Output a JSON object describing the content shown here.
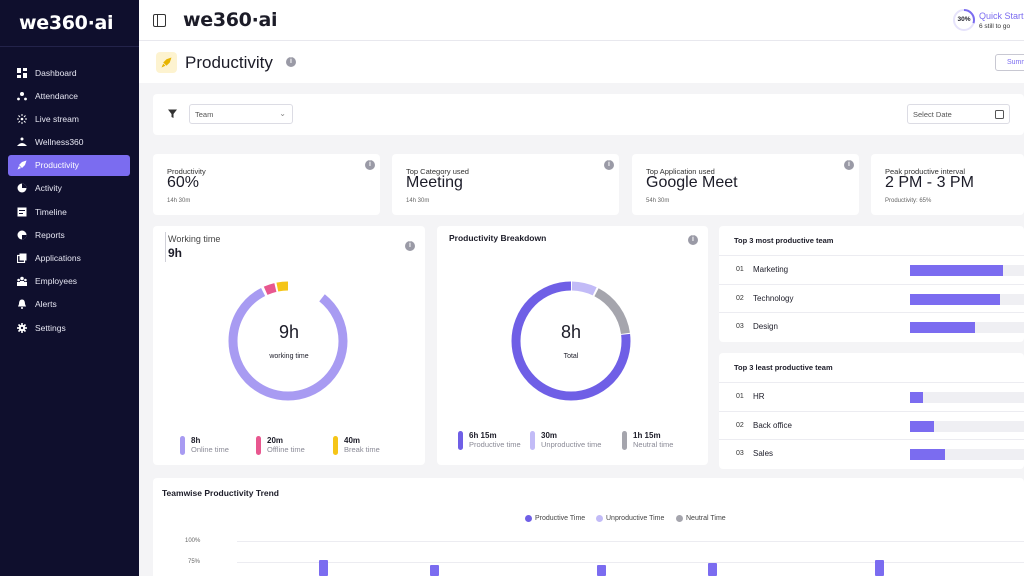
{
  "sidebar": {
    "logo": "we360·ai",
    "items": [
      {
        "label": "Dashboard",
        "icon": "grid-icon"
      },
      {
        "label": "Attendance",
        "icon": "people-icon"
      },
      {
        "label": "Live stream",
        "icon": "broadcast-icon"
      },
      {
        "label": "Wellness360",
        "icon": "wellness-icon"
      },
      {
        "label": "Productivity",
        "icon": "rocket-icon",
        "active": true
      },
      {
        "label": "Activity",
        "icon": "pie-icon"
      },
      {
        "label": "Timeline",
        "icon": "timeline-icon"
      },
      {
        "label": "Reports",
        "icon": "reports-icon"
      },
      {
        "label": "Applications",
        "icon": "applications-icon"
      },
      {
        "label": "Employees",
        "icon": "employees-icon"
      },
      {
        "label": "Alerts",
        "icon": "bell-icon"
      },
      {
        "label": "Settings",
        "icon": "gear-icon"
      }
    ]
  },
  "topbar": {
    "logo": "we360·ai",
    "quick_start": {
      "percent_label": "30%",
      "percent": 0.3,
      "title": "Quick Start",
      "subtitle": "6 still to go"
    }
  },
  "page": {
    "title": "Productivity",
    "summary_button": "Summ"
  },
  "filters": {
    "team_placeholder": "Team",
    "date_placeholder": "Select Date"
  },
  "stats": [
    {
      "label": "Productivity",
      "value": "60%",
      "sub": "14h 30m"
    },
    {
      "label": "Top Category used",
      "value": "Meeting",
      "sub": "14h 30m"
    },
    {
      "label": "Top Application used",
      "value": "Google Meet",
      "sub": "54h 30m"
    },
    {
      "label": "Peak productive interval",
      "value": "2 PM - 3 PM",
      "sub": "Productivity: 65%"
    }
  ],
  "working_time": {
    "title": "Working time",
    "value": "9h",
    "center_value": "9h",
    "center_label": "working time",
    "legend": [
      {
        "value": "8h",
        "label": "Online time",
        "color": "#a89bf2"
      },
      {
        "value": "20m",
        "label": "Offline time",
        "color": "#e8578f"
      },
      {
        "value": "40m",
        "label": "Break time",
        "color": "#f5c518"
      }
    ]
  },
  "breakdown": {
    "title": "Productivity Breakdown",
    "center_value": "8h",
    "center_label": "Total",
    "legend": [
      {
        "value": "6h 15m",
        "label": "Productive time",
        "color": "#6f5fe6"
      },
      {
        "value": "30m",
        "label": "Unproductive time",
        "color": "#c2bbf7"
      },
      {
        "value": "1h 15m",
        "label": "Neutral time",
        "color": "#a5a5ad"
      }
    ]
  },
  "top_teams": {
    "title": "Top 3 most productive team",
    "rows": [
      {
        "num": "01",
        "name": "Marketing",
        "value": 0.82
      },
      {
        "num": "02",
        "name": "Technology",
        "value": 0.79
      },
      {
        "num": "03",
        "name": "Design",
        "value": 0.57
      }
    ]
  },
  "least_teams": {
    "title": "Top 3 least productive team",
    "rows": [
      {
        "num": "01",
        "name": "HR",
        "value": 0.11
      },
      {
        "num": "02",
        "name": "Back office",
        "value": 0.21
      },
      {
        "num": "03",
        "name": "Sales",
        "value": 0.31
      }
    ]
  },
  "trend": {
    "title": "Teamwise Productivity Trend",
    "legend": [
      {
        "label": "Productive Time",
        "color": "#6f5fe6"
      },
      {
        "label": "Unproductive Time",
        "color": "#c2bbf7"
      },
      {
        "label": "Neutral Time",
        "color": "#a5a5ad"
      }
    ],
    "y_ticks": [
      "100%",
      "75%"
    ]
  }
}
